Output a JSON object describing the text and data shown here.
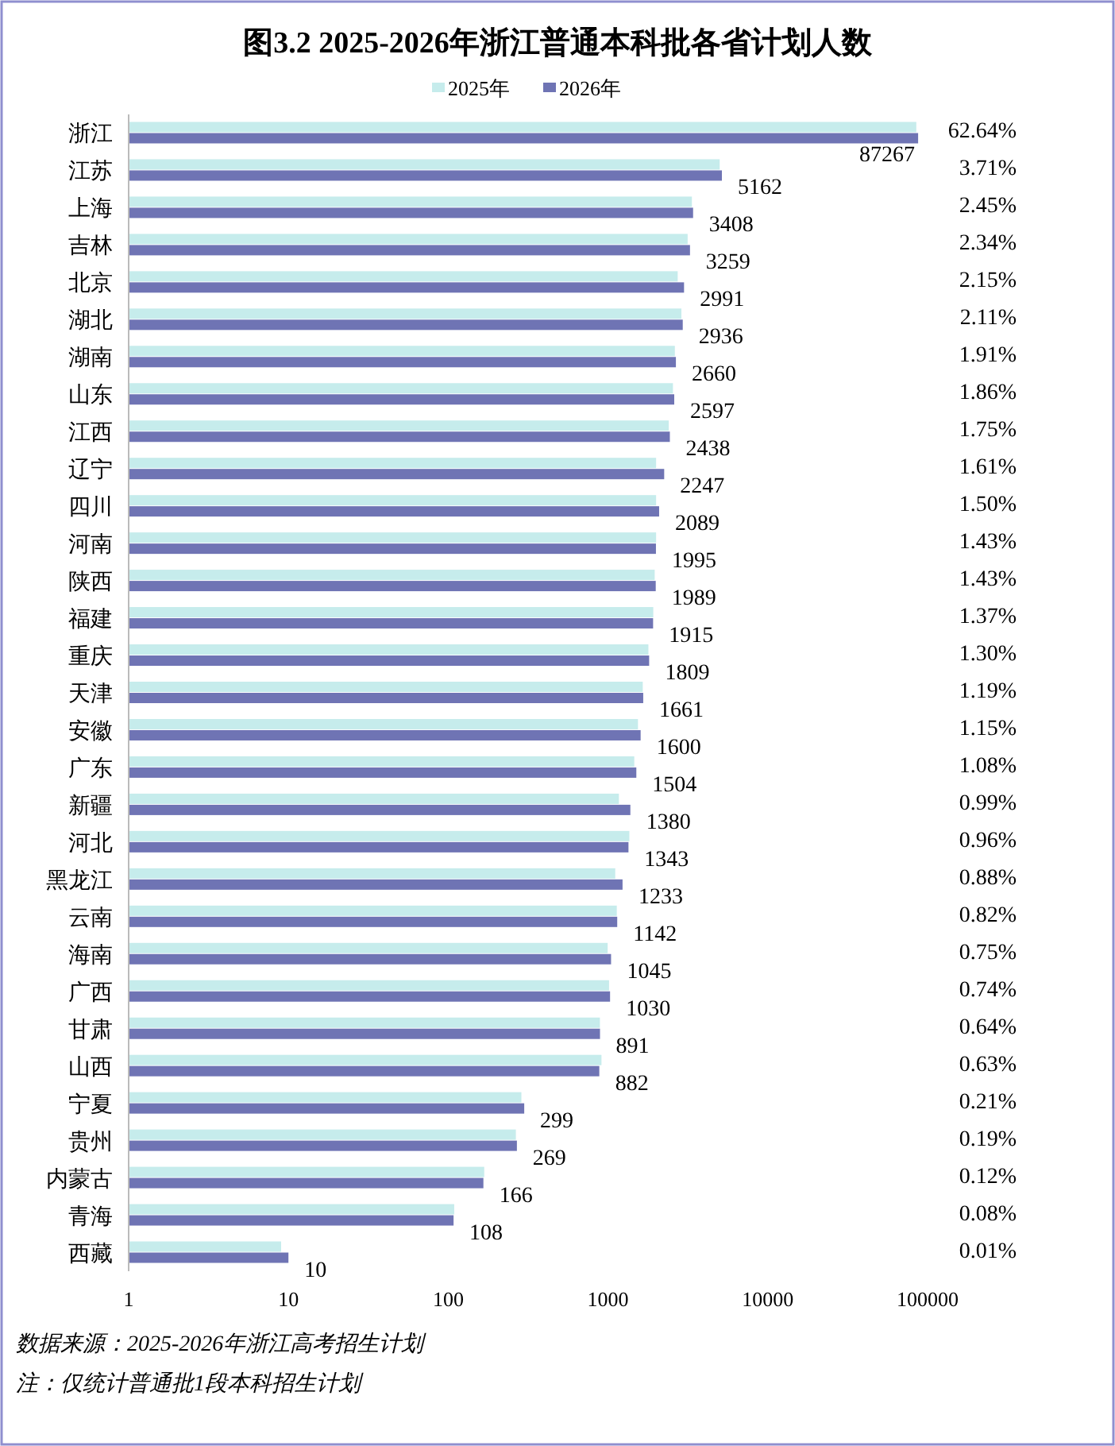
{
  "chart_data": {
    "type": "bar",
    "orientation": "horizontal",
    "title": "图3.2  2025-2026年浙江普通本科批各省计划人数",
    "categories": [
      "浙江",
      "江苏",
      "上海",
      "吉林",
      "北京",
      "湖北",
      "湖南",
      "山东",
      "江西",
      "辽宁",
      "四川",
      "河南",
      "陕西",
      "福建",
      "重庆",
      "天津",
      "安徽",
      "广东",
      "新疆",
      "河北",
      "黑龙江",
      "云南",
      "海南",
      "广西",
      "甘肃",
      "山西",
      "宁夏",
      "贵州",
      "内蒙古",
      "青海",
      "西藏"
    ],
    "series": [
      {
        "name": "2025年",
        "color": "#c6ecec",
        "values": [
          85000,
          5000,
          3350,
          3150,
          2730,
          2880,
          2620,
          2550,
          2400,
          2000,
          2000,
          2000,
          1960,
          1920,
          1790,
          1650,
          1540,
          1460,
          1170,
          1360,
          1110,
          1135,
          995,
          1015,
          890,
          910,
          287,
          265,
          168,
          109,
          9
        ]
      },
      {
        "name": "2026年",
        "color": "#6f74b4",
        "values": [
          87267,
          5162,
          3408,
          3259,
          2991,
          2936,
          2660,
          2597,
          2438,
          2247,
          2089,
          1995,
          1989,
          1915,
          1809,
          1661,
          1600,
          1504,
          1380,
          1343,
          1233,
          1142,
          1045,
          1030,
          891,
          882,
          299,
          269,
          166,
          108,
          10
        ],
        "value_labels": [
          "87267",
          "5162",
          "3408",
          "3259",
          "2991",
          "2936",
          "2660",
          "2597",
          "2438",
          "2247",
          "2089",
          "1995",
          "1989",
          "1915",
          "1809",
          "1661",
          "1600",
          "1504",
          "1380",
          "1343",
          "1233",
          "1142",
          "1045",
          "1030",
          "891",
          "882",
          "299",
          "269",
          "166",
          "108",
          "10"
        ]
      }
    ],
    "log": "x",
    "xlim": [
      1,
      100000
    ],
    "xticks": [
      1,
      10,
      100,
      1000,
      10000,
      100000
    ],
    "grid": false,
    "legend": "top",
    "annotations": [
      "62.64%",
      "3.71%",
      "2.45%",
      "2.34%",
      "2.15%",
      "2.11%",
      "1.91%",
      "1.86%",
      "1.75%",
      "1.61%",
      "1.50%",
      "1.43%",
      "1.43%",
      "1.37%",
      "1.30%",
      "1.19%",
      "1.15%",
      "1.08%",
      "0.99%",
      "0.96%",
      "0.88%",
      "0.82%",
      "0.75%",
      "0.74%",
      "0.64%",
      "0.63%",
      "0.21%",
      "0.19%",
      "0.12%",
      "0.08%",
      "0.01%",
      "数据来源：2025-2026年浙江高考招生计划",
      "注：仅统计普通批1段本科招生计划"
    ]
  }
}
